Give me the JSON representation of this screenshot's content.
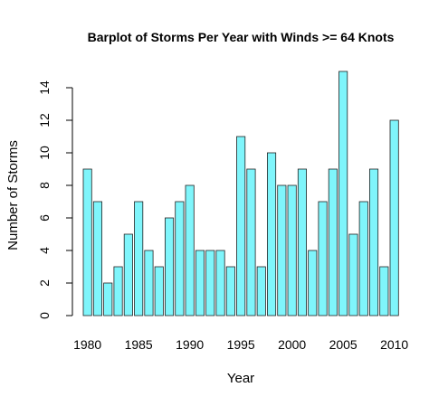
{
  "chart_data": {
    "type": "bar",
    "title": "Barplot of Storms Per Year with Winds >= 64 Knots",
    "xlabel": "Year",
    "ylabel": "Number of Storms",
    "categories": [
      "1980",
      "1981",
      "1982",
      "1983",
      "1984",
      "1985",
      "1986",
      "1987",
      "1988",
      "1989",
      "1990",
      "1991",
      "1992",
      "1993",
      "1994",
      "1995",
      "1996",
      "1997",
      "1998",
      "1999",
      "2000",
      "2001",
      "2002",
      "2003",
      "2004",
      "2005",
      "2006",
      "2007",
      "2008",
      "2009",
      "2010"
    ],
    "values": [
      9,
      7,
      2,
      3,
      5,
      7,
      4,
      3,
      6,
      7,
      8,
      4,
      4,
      4,
      3,
      11,
      9,
      3,
      10,
      8,
      8,
      9,
      4,
      7,
      9,
      15,
      5,
      7,
      9,
      3,
      12
    ],
    "x_tick_labels": [
      "1980",
      "1985",
      "1990",
      "1995",
      "2000",
      "2005",
      "2010"
    ],
    "y_ticks": [
      0,
      2,
      4,
      6,
      8,
      10,
      12,
      14
    ],
    "ylim": [
      0,
      15
    ],
    "grid": false,
    "bar_color": "#7ff5fb",
    "bar_border_color": "#222222"
  }
}
